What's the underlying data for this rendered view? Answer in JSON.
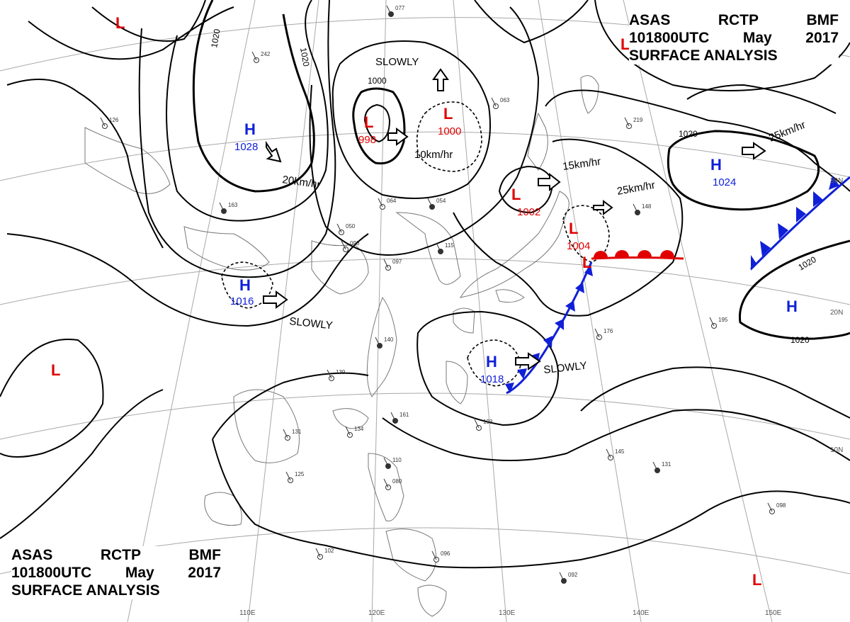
{
  "header": {
    "line1": [
      "ASAS",
      "RCTP",
      "BMF"
    ],
    "line2": [
      "101800UTC",
      "May",
      "2017"
    ],
    "line3": "SURFACE ANALYSIS"
  },
  "colors": {
    "high": "#1020d8",
    "low": "#e00000",
    "cold_front": "#1020d8",
    "warm_front": "#e00000",
    "isobar": "#000000",
    "coast": "#777777",
    "grid": "#999999"
  },
  "pressure_systems": [
    {
      "type": "H",
      "value": "1028"
    },
    {
      "type": "H",
      "value": "1016"
    },
    {
      "type": "H",
      "value": "1018"
    },
    {
      "type": "H",
      "value": "1024"
    },
    {
      "type": "H",
      "value": ""
    },
    {
      "type": "L",
      "value": "998"
    },
    {
      "type": "L",
      "value": "1000"
    },
    {
      "type": "L",
      "value": "1002"
    },
    {
      "type": "L",
      "value": "1004"
    },
    {
      "type": "L",
      "value": ""
    },
    {
      "type": "L",
      "value": ""
    },
    {
      "type": "L",
      "value": ""
    },
    {
      "type": "L",
      "value": ""
    },
    {
      "type": "L",
      "value": ""
    }
  ],
  "isobar_labels": [
    "1020",
    "1020",
    "1000",
    "1020",
    "1020",
    "1020"
  ],
  "motion_labels": [
    "SLOWLY",
    "10km/hr",
    "20km/hr",
    "15km/hr",
    "25km/hr",
    "25km/hr",
    "SLOWLY",
    "SLOWLY"
  ],
  "lat_labels": [
    "30N",
    "20N",
    "10N"
  ],
  "lon_labels": [
    "110E",
    "120E",
    "130E",
    "140E",
    "150E"
  ],
  "station_samples": [
    "077",
    "242",
    "126",
    "163",
    "050",
    "064",
    "054",
    "090",
    "097",
    "115",
    "063",
    "219",
    "148",
    "125",
    "134",
    "161",
    "193",
    "145",
    "131",
    "102",
    "096",
    "092",
    "098",
    "080",
    "110",
    "195",
    "176",
    "140",
    "139",
    "131"
  ]
}
